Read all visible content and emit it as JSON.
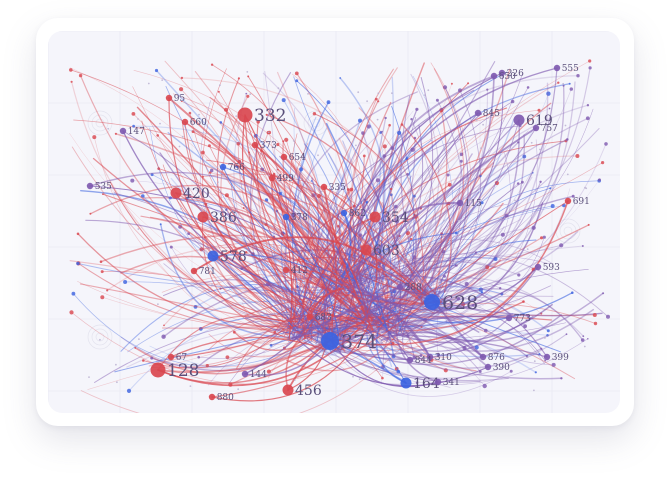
{
  "colors": {
    "red": "#d9464f",
    "blue": "#3d63e0",
    "purple": "#7f5ab0",
    "background": "#f5f5fb"
  },
  "hubs": [
    {
      "id": "hub-374",
      "label": "374",
      "value": 374,
      "color": "blue"
    },
    {
      "id": "hub-628",
      "label": "628",
      "value": 628,
      "color": "blue"
    }
  ],
  "labeled_nodes": [
    {
      "label": "332",
      "color": "red",
      "size": "l"
    },
    {
      "label": "128",
      "color": "red",
      "size": "l"
    },
    {
      "label": "456",
      "color": "red",
      "size": "m"
    },
    {
      "label": "420",
      "color": "red",
      "size": "m"
    },
    {
      "label": "386",
      "color": "red",
      "size": "m"
    },
    {
      "label": "354",
      "color": "red",
      "size": "m"
    },
    {
      "label": "603",
      "color": "red",
      "size": "m"
    },
    {
      "label": "578",
      "color": "blue",
      "size": "m"
    },
    {
      "label": "619",
      "color": "purple",
      "size": "m"
    },
    {
      "label": "757",
      "color": "purple",
      "size": "s"
    },
    {
      "label": "535",
      "color": "purple",
      "size": "s"
    },
    {
      "label": "147",
      "color": "purple",
      "size": "s"
    },
    {
      "label": "226",
      "color": "purple",
      "size": "s"
    },
    {
      "label": "555",
      "color": "purple",
      "size": "s"
    },
    {
      "label": "399",
      "color": "purple",
      "size": "s"
    },
    {
      "label": "876",
      "color": "purple",
      "size": "s"
    },
    {
      "label": "310",
      "color": "purple",
      "size": "s"
    },
    {
      "label": "164",
      "color": "blue",
      "size": "m"
    },
    {
      "label": "844",
      "color": "purple",
      "size": "s"
    },
    {
      "label": "115",
      "color": "purple",
      "size": "s"
    },
    {
      "label": "691",
      "color": "red",
      "size": "s"
    },
    {
      "label": "862",
      "color": "blue",
      "size": "s"
    },
    {
      "label": "378",
      "color": "blue",
      "size": "s"
    },
    {
      "label": "499",
      "color": "red",
      "size": "s"
    },
    {
      "label": "766",
      "color": "blue",
      "size": "s"
    },
    {
      "label": "144",
      "color": "purple",
      "size": "s"
    },
    {
      "label": "683",
      "color": "red",
      "size": "s"
    },
    {
      "label": "335",
      "color": "red",
      "size": "s"
    },
    {
      "label": "781",
      "color": "red",
      "size": "s"
    },
    {
      "label": "412",
      "color": "red",
      "size": "s"
    },
    {
      "label": "288",
      "color": "purple",
      "size": "s"
    },
    {
      "label": "593",
      "color": "purple",
      "size": "s"
    },
    {
      "label": "660",
      "color": "red",
      "size": "s"
    },
    {
      "label": "95",
      "color": "red",
      "size": "s"
    },
    {
      "label": "373",
      "color": "red",
      "size": "s"
    },
    {
      "label": "654",
      "color": "red",
      "size": "s"
    },
    {
      "label": "650",
      "color": "purple",
      "size": "s"
    },
    {
      "label": "390",
      "color": "purple",
      "size": "s"
    },
    {
      "label": "341",
      "color": "purple",
      "size": "s"
    },
    {
      "label": "67",
      "color": "red",
      "size": "s"
    },
    {
      "label": "845",
      "color": "purple",
      "size": "s"
    },
    {
      "label": "773",
      "color": "purple",
      "size": "s"
    },
    {
      "label": "880",
      "color": "red",
      "size": "s"
    }
  ]
}
